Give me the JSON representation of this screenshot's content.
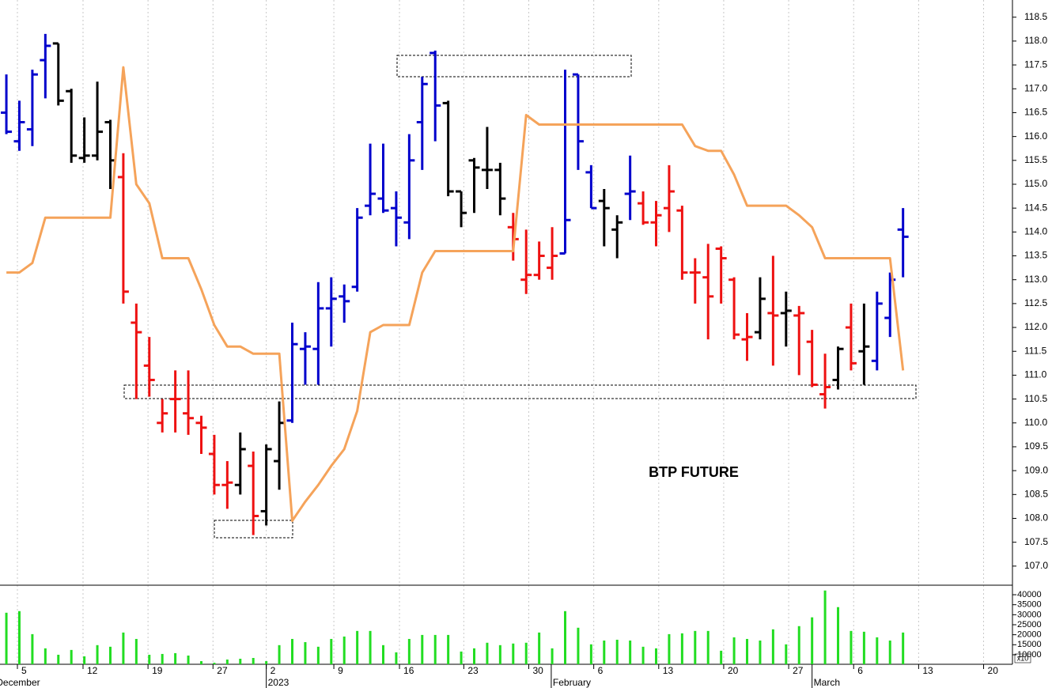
{
  "chart_data": {
    "type": "ohlc",
    "title": "BTP FUTURE",
    "xlim": [
      -0.49,
      77.42
    ],
    "xticks": [
      {
        "value": 0.85,
        "label": "5"
      },
      {
        "value": 5.9,
        "label": "12"
      },
      {
        "value": 10.9,
        "label": "19"
      },
      {
        "value": 15.9,
        "label": "27"
      },
      {
        "value": 20.0,
        "label": "2"
      },
      {
        "value": 25.2,
        "label": "9"
      },
      {
        "value": 30.25,
        "label": "16"
      },
      {
        "value": 35.2,
        "label": "23"
      },
      {
        "value": 40.2,
        "label": "30"
      },
      {
        "value": 45.2,
        "label": "6"
      },
      {
        "value": 50.2,
        "label": "13"
      },
      {
        "value": 55.2,
        "label": "20"
      },
      {
        "value": 60.2,
        "label": "27"
      },
      {
        "value": 65.2,
        "label": "6"
      },
      {
        "value": 70.2,
        "label": "13"
      },
      {
        "value": 75.2,
        "label": "20"
      }
    ],
    "month_ticks": [
      {
        "value": -0.9,
        "label": "December"
      },
      {
        "value": 20.0,
        "label": "2023"
      },
      {
        "value": 41.93,
        "label": "February"
      },
      {
        "value": 62.0,
        "label": "March"
      }
    ],
    "ylim": [
      106.6,
      118.86
    ],
    "yticks": [
      {
        "value": 107.0,
        "label": "107.0"
      },
      {
        "value": 107.5,
        "label": "107.5"
      },
      {
        "value": 108.0,
        "label": "108.0"
      },
      {
        "value": 108.5,
        "label": "108.5"
      },
      {
        "value": 109.0,
        "label": "109.0"
      },
      {
        "value": 109.5,
        "label": "109.5"
      },
      {
        "value": 110.0,
        "label": "110.0"
      },
      {
        "value": 110.5,
        "label": "110.5"
      },
      {
        "value": 111.0,
        "label": "111.0"
      },
      {
        "value": 111.5,
        "label": "111.5"
      },
      {
        "value": 112.0,
        "label": "112.0"
      },
      {
        "value": 112.5,
        "label": "112.5"
      },
      {
        "value": 113.0,
        "label": "113.0"
      },
      {
        "value": 113.5,
        "label": "113.5"
      },
      {
        "value": 114.0,
        "label": "114.0"
      },
      {
        "value": 114.5,
        "label": "114.5"
      },
      {
        "value": 115.0,
        "label": "115.0"
      },
      {
        "value": 115.5,
        "label": "115.5"
      },
      {
        "value": 116.0,
        "label": "116.0"
      },
      {
        "value": 116.5,
        "label": "116.5"
      },
      {
        "value": 117.0,
        "label": "117.0"
      },
      {
        "value": 117.5,
        "label": "117.5"
      },
      {
        "value": 118.0,
        "label": "118.0"
      },
      {
        "value": 118.5,
        "label": "118.5"
      }
    ],
    "open": [
      116.5,
      115.9,
      116.15,
      117.6,
      117.95,
      116.95,
      115.55,
      115.6,
      116.3,
      115.15,
      112.1,
      111.2,
      110.0,
      110.5,
      110.2,
      110.0,
      109.35,
      108.7,
      108.7,
      109.1,
      108.15,
      109.2,
      110.05,
      111.55,
      111.55,
      112.4,
      112.65,
      112.85,
      114.55,
      114.7,
      114.5,
      114.2,
      116.3,
      117.75,
      116.7,
      114.85,
      115.5,
      115.3,
      115.3,
      114.1,
      113.0,
      113.1,
      113.25,
      113.55,
      117.3,
      115.25,
      114.65,
      114.05,
      114.8,
      114.6,
      114.2,
      114.5,
      114.45,
      113.15,
      113.05,
      113.65,
      113.0,
      111.75,
      111.9,
      112.3,
      112.3,
      112.25,
      111.7,
      110.6,
      110.9,
      112.0,
      111.5,
      111.3,
      112.2,
      114.05
    ],
    "high": [
      117.3,
      116.75,
      117.4,
      118.15,
      117.95,
      117.0,
      116.4,
      117.15,
      116.35,
      115.65,
      112.5,
      111.8,
      110.5,
      111.1,
      111.1,
      110.15,
      109.75,
      109.2,
      109.8,
      109.4,
      109.55,
      110.45,
      112.1,
      111.9,
      112.95,
      113.05,
      112.9,
      114.5,
      115.85,
      115.85,
      114.85,
      116.05,
      117.25,
      117.8,
      116.75,
      114.85,
      115.55,
      116.2,
      115.45,
      114.4,
      114.05,
      113.8,
      114.1,
      117.4,
      117.3,
      115.4,
      114.9,
      114.35,
      115.6,
      114.85,
      114.65,
      115.4,
      114.55,
      113.45,
      113.75,
      113.7,
      113.05,
      112.3,
      113.05,
      113.5,
      112.75,
      112.45,
      111.95,
      111.45,
      111.6,
      112.5,
      112.5,
      112.75,
      113.15,
      114.5
    ],
    "low": [
      116.05,
      115.7,
      115.8,
      116.8,
      116.65,
      115.45,
      115.45,
      115.5,
      114.9,
      112.5,
      110.5,
      110.55,
      109.8,
      109.8,
      109.75,
      109.35,
      108.5,
      108.2,
      108.5,
      107.65,
      107.85,
      108.6,
      110.0,
      110.8,
      110.8,
      111.6,
      112.1,
      112.75,
      114.35,
      114.4,
      113.7,
      113.85,
      115.3,
      115.9,
      114.75,
      114.1,
      114.4,
      114.9,
      114.35,
      113.4,
      112.7,
      113.0,
      113.0,
      113.55,
      115.3,
      114.5,
      113.7,
      113.45,
      114.25,
      114.15,
      113.7,
      114.0,
      113.0,
      112.5,
      111.75,
      112.5,
      111.75,
      111.3,
      111.75,
      111.2,
      111.6,
      111.0,
      110.75,
      110.3,
      110.7,
      111.1,
      110.8,
      111.1,
      111.8,
      113.05
    ],
    "close": [
      116.1,
      116.3,
      117.3,
      117.9,
      116.75,
      115.6,
      115.6,
      116.1,
      115.5,
      112.75,
      111.9,
      110.9,
      110.2,
      110.5,
      110.1,
      109.9,
      108.7,
      108.75,
      109.45,
      108.05,
      109.45,
      110.0,
      111.65,
      111.6,
      112.4,
      112.6,
      112.55,
      114.3,
      114.8,
      114.45,
      114.3,
      115.5,
      117.1,
      116.65,
      114.85,
      114.4,
      115.35,
      115.3,
      114.7,
      113.85,
      113.1,
      113.5,
      113.5,
      114.25,
      115.9,
      114.5,
      114.5,
      114.2,
      114.85,
      114.2,
      114.35,
      114.85,
      113.15,
      113.15,
      112.65,
      113.45,
      111.85,
      111.8,
      112.6,
      112.25,
      112.35,
      112.3,
      110.8,
      110.75,
      111.55,
      111.25,
      111.6,
      112.5,
      113.0,
      113.9
    ],
    "bar_colors": [
      "#0000cc",
      "#0000cc",
      "#0000cc",
      "#0000cc",
      "#000000",
      "#000000",
      "#000000",
      "#000000",
      "#000000",
      "#ee1111",
      "#ee1111",
      "#ee1111",
      "#ee1111",
      "#ee1111",
      "#ee1111",
      "#ee1111",
      "#ee1111",
      "#ee1111",
      "#000000",
      "#ee1111",
      "#000000",
      "#000000",
      "#0000cc",
      "#0000cc",
      "#0000cc",
      "#0000cc",
      "#0000cc",
      "#0000cc",
      "#0000cc",
      "#0000cc",
      "#0000cc",
      "#0000cc",
      "#0000cc",
      "#0000cc",
      "#000000",
      "#000000",
      "#000000",
      "#000000",
      "#000000",
      "#ee1111",
      "#ee1111",
      "#ee1111",
      "#ee1111",
      "#0000cc",
      "#0000cc",
      "#0000cc",
      "#000000",
      "#000000",
      "#0000cc",
      "#ee1111",
      "#ee1111",
      "#ee1111",
      "#ee1111",
      "#ee1111",
      "#ee1111",
      "#ee1111",
      "#ee1111",
      "#ee1111",
      "#000000",
      "#ee1111",
      "#000000",
      "#ee1111",
      "#ee1111",
      "#ee1111",
      "#000000",
      "#ee1111",
      "#000000",
      "#0000cc",
      "#0000cc",
      "#0000cc"
    ],
    "overlay": {
      "color": "#f5a35a",
      "values": [
        113.15,
        113.15,
        113.35,
        114.3,
        114.3,
        114.3,
        114.3,
        114.3,
        114.3,
        117.45,
        115.0,
        114.6,
        113.45,
        113.45,
        113.45,
        112.8,
        112.05,
        111.6,
        111.6,
        111.45,
        111.45,
        111.45,
        107.95,
        108.35,
        108.7,
        109.1,
        109.45,
        110.25,
        111.9,
        112.05,
        112.05,
        112.05,
        113.15,
        113.6,
        113.6,
        113.6,
        113.6,
        113.6,
        113.6,
        113.6,
        116.45,
        116.25,
        116.25,
        116.25,
        116.25,
        116.25,
        116.25,
        116.25,
        116.25,
        116.25,
        116.25,
        116.25,
        116.25,
        115.8,
        115.7,
        115.7,
        115.2,
        114.55,
        114.55,
        114.55,
        114.55,
        114.35,
        114.1,
        113.45,
        113.45,
        113.45,
        113.45,
        113.45,
        113.45,
        111.1
      ]
    },
    "volume": {
      "color": "#22dd22",
      "unit": "x10",
      "ylim": [
        5238,
        44365
      ],
      "yticks": [
        10000,
        15000,
        20000,
        25000,
        30000,
        35000,
        40000
      ],
      "values": [
        31000,
        31800,
        20300,
        13200,
        10000,
        12400,
        9200,
        14800,
        14000,
        21100,
        17900,
        10000,
        10400,
        10800,
        9600,
        6800,
        6000,
        7600,
        8000,
        8400,
        6800,
        14800,
        17900,
        16300,
        14000,
        17900,
        19100,
        21900,
        21900,
        14800,
        11200,
        17900,
        19900,
        19900,
        19900,
        11600,
        13200,
        16000,
        14800,
        15600,
        16000,
        21100,
        13200,
        31800,
        23500,
        15200,
        17100,
        17500,
        17100,
        14000,
        13200,
        20300,
        20700,
        21900,
        21900,
        12000,
        18700,
        17900,
        17100,
        22700,
        15200,
        24300,
        28700,
        42100,
        33800,
        21900,
        21500,
        18700,
        17100,
        21100
      ]
    }
  }
}
